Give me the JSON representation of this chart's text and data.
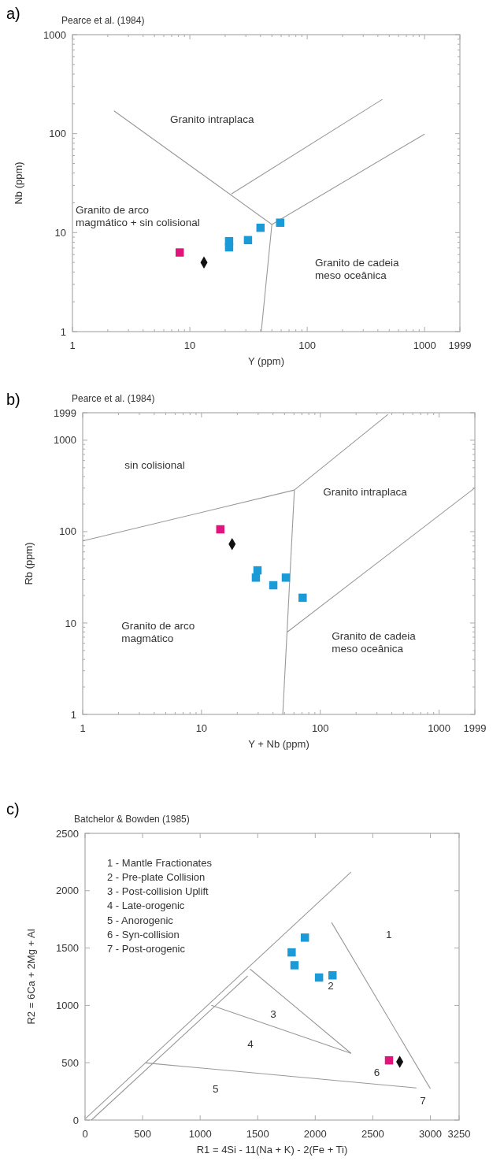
{
  "chart_data": [
    {
      "type": "scatter",
      "title": "a)",
      "subtitle": "Pearce et al. (1984)",
      "xlabel": "Y  (ppm)",
      "ylabel": "Nb  (ppm)",
      "log": "xy",
      "xlim": [
        1,
        1999
      ],
      "ylim": [
        1,
        1000
      ],
      "xticks": [
        1,
        {
          "value": 2,
          "label": null
        },
        {
          "value": 3,
          "label": null
        },
        {
          "value": 4,
          "label": null
        },
        {
          "value": 5,
          "label": null
        },
        {
          "value": 6,
          "label": null
        },
        {
          "value": 7,
          "label": null
        },
        {
          "value": 8,
          "label": null
        },
        {
          "value": 9,
          "label": null
        },
        10,
        {
          "value": 20,
          "label": null
        },
        {
          "value": 30,
          "label": null
        },
        {
          "value": 40,
          "label": null
        },
        {
          "value": 50,
          "label": null
        },
        {
          "value": 60,
          "label": null
        },
        {
          "value": 70,
          "label": null
        },
        {
          "value": 80,
          "label": null
        },
        {
          "value": 90,
          "label": null
        },
        100,
        {
          "value": 200,
          "label": null
        },
        {
          "value": 300,
          "label": null
        },
        {
          "value": 400,
          "label": null
        },
        {
          "value": 500,
          "label": null
        },
        {
          "value": 600,
          "label": null
        },
        {
          "value": 700,
          "label": null
        },
        {
          "value": 800,
          "label": null
        },
        {
          "value": 900,
          "label": null
        },
        1000,
        1999
      ],
      "yticks": [
        1,
        {
          "value": 2,
          "label": null
        },
        {
          "value": 3,
          "label": null
        },
        {
          "value": 4,
          "label": null
        },
        {
          "value": 5,
          "label": null
        },
        {
          "value": 6,
          "label": null
        },
        {
          "value": 7,
          "label": null
        },
        {
          "value": 8,
          "label": null
        },
        {
          "value": 9,
          "label": null
        },
        10,
        {
          "value": 20,
          "label": null
        },
        {
          "value": 30,
          "label": null
        },
        {
          "value": 40,
          "label": null
        },
        {
          "value": 50,
          "label": null
        },
        {
          "value": 60,
          "label": null
        },
        {
          "value": 70,
          "label": null
        },
        {
          "value": 80,
          "label": null
        },
        {
          "value": 90,
          "label": null
        },
        100,
        {
          "value": 200,
          "label": null
        },
        {
          "value": 300,
          "label": null
        },
        {
          "value": 400,
          "label": null
        },
        {
          "value": 500,
          "label": null
        },
        {
          "value": 600,
          "label": null
        },
        {
          "value": 700,
          "label": null
        },
        {
          "value": 800,
          "label": null
        },
        {
          "value": 900,
          "label": null
        },
        1000
      ],
      "series": [
        {
          "type": "line",
          "color": "#999999",
          "x": [
            2.26,
            50,
            40.6
          ],
          "values": [
            170,
            12.1,
            1
          ]
        },
        {
          "type": "line",
          "color": "#999999",
          "x": [
            22.6,
            437
          ],
          "values": [
            24.6,
            222
          ]
        },
        {
          "type": "line",
          "color": "#999999",
          "x": [
            50,
            1000
          ],
          "values": [
            12.1,
            99
          ]
        },
        {
          "type": "scatter",
          "marker": "square",
          "color": "#1a9ad6",
          "x": [
            21.6,
            21.6,
            31.3,
            40,
            58.8
          ],
          "values": [
            8.2,
            7.1,
            8.4,
            11.2,
            12.6
          ]
        },
        {
          "type": "scatter",
          "marker": "square",
          "color": "#e0147a",
          "x": [
            8.2
          ],
          "values": [
            6.3
          ]
        },
        {
          "type": "scatter",
          "marker": "diamond",
          "color": "#111111",
          "x": [
            13.2
          ],
          "values": [
            5.0
          ]
        }
      ],
      "annotations": [
        "Granito intraplaca",
        "Granito de arco\nmagmático + sin colisional",
        "Granito de cadeia\nmeso oceânica"
      ]
    },
    {
      "type": "scatter",
      "title": "b)",
      "subtitle": "Pearce et al. (1984)",
      "xlabel": "Y + Nb  (ppm)",
      "ylabel": "Rb  (ppm)",
      "log": "xy",
      "xlim": [
        1,
        1999
      ],
      "ylim": [
        1,
        1999
      ],
      "xticks": [
        1,
        {
          "value": 2,
          "label": null
        },
        {
          "value": 3,
          "label": null
        },
        {
          "value": 4,
          "label": null
        },
        {
          "value": 5,
          "label": null
        },
        {
          "value": 6,
          "label": null
        },
        {
          "value": 7,
          "label": null
        },
        {
          "value": 8,
          "label": null
        },
        {
          "value": 9,
          "label": null
        },
        10,
        {
          "value": 20,
          "label": null
        },
        {
          "value": 30,
          "label": null
        },
        {
          "value": 40,
          "label": null
        },
        {
          "value": 50,
          "label": null
        },
        {
          "value": 60,
          "label": null
        },
        {
          "value": 70,
          "label": null
        },
        {
          "value": 80,
          "label": null
        },
        {
          "value": 90,
          "label": null
        },
        100,
        {
          "value": 200,
          "label": null
        },
        {
          "value": 300,
          "label": null
        },
        {
          "value": 400,
          "label": null
        },
        {
          "value": 500,
          "label": null
        },
        {
          "value": 600,
          "label": null
        },
        {
          "value": 700,
          "label": null
        },
        {
          "value": 800,
          "label": null
        },
        {
          "value": 900,
          "label": null
        },
        1000,
        1999
      ],
      "yticks": [
        1,
        {
          "value": 2,
          "label": null
        },
        {
          "value": 3,
          "label": null
        },
        {
          "value": 4,
          "label": null
        },
        {
          "value": 5,
          "label": null
        },
        {
          "value": 6,
          "label": null
        },
        {
          "value": 7,
          "label": null
        },
        {
          "value": 8,
          "label": null
        },
        {
          "value": 9,
          "label": null
        },
        10,
        {
          "value": 20,
          "label": null
        },
        {
          "value": 30,
          "label": null
        },
        {
          "value": 40,
          "label": null
        },
        {
          "value": 50,
          "label": null
        },
        {
          "value": 60,
          "label": null
        },
        {
          "value": 70,
          "label": null
        },
        {
          "value": 80,
          "label": null
        },
        {
          "value": 90,
          "label": null
        },
        100,
        {
          "value": 200,
          "label": null
        },
        {
          "value": 300,
          "label": null
        },
        {
          "value": 400,
          "label": null
        },
        {
          "value": 500,
          "label": null
        },
        {
          "value": 600,
          "label": null
        },
        {
          "value": 700,
          "label": null
        },
        {
          "value": 800,
          "label": null
        },
        {
          "value": 900,
          "label": null
        },
        1000,
        1999
      ],
      "series": [
        {
          "type": "line",
          "color": "#999999",
          "x": [
            1,
            60.5,
            371
          ],
          "values": [
            79,
            285,
            1919
          ]
        },
        {
          "type": "line",
          "color": "#999999",
          "x": [
            60.5,
            48.3
          ],
          "values": [
            285,
            1
          ]
        },
        {
          "type": "line",
          "color": "#999999",
          "x": [
            52.9,
            1999
          ],
          "values": [
            8.0,
            301
          ]
        },
        {
          "type": "scatter",
          "marker": "square",
          "color": "#1a9ad6",
          "x": [
            29.6,
            28.7,
            40.2,
            51.3,
            71
          ],
          "values": [
            37.7,
            31.4,
            25.9,
            31.4,
            18.9
          ]
        },
        {
          "type": "scatter",
          "marker": "square",
          "color": "#e0147a",
          "x": [
            14.4
          ],
          "values": [
            106
          ]
        },
        {
          "type": "scatter",
          "marker": "diamond",
          "color": "#111111",
          "x": [
            18.1
          ],
          "values": [
            73
          ]
        }
      ],
      "annotations": [
        "sin colisional",
        "Granito intraplaca",
        "Granito de arco\nmagmático",
        "Granito de cadeia\nmeso oceânica"
      ]
    },
    {
      "type": "scatter",
      "title": "c)",
      "subtitle": "Batchelor & Bowden (1985)",
      "xlabel": "R1 = 4Si - 11(Na + K) - 2(Fe + Ti)",
      "ylabel": "R2 = 6Ca + 2Mg + Al",
      "xlim": [
        0,
        3250
      ],
      "ylim": [
        0,
        2500
      ],
      "xticks": [
        0,
        500,
        1000,
        1500,
        2000,
        2500,
        3000,
        3250
      ],
      "yticks": [
        0,
        500,
        1000,
        1500,
        2000,
        2500
      ],
      "series": [
        {
          "type": "line",
          "color": "#999999",
          "x": [
            5,
            2311
          ],
          "values": [
            14,
            2162
          ]
        },
        {
          "type": "line",
          "color": "#999999",
          "x": [
            55,
            1413
          ],
          "values": [
            0,
            1257
          ]
        },
        {
          "type": "line",
          "color": "#999999",
          "x": [
            1097,
            2311
          ],
          "values": [
            1001,
            582
          ]
        },
        {
          "type": "line",
          "color": "#999999",
          "x": [
            1434,
            2311
          ],
          "values": [
            1317,
            582
          ]
        },
        {
          "type": "line",
          "color": "#999999",
          "x": [
            524,
            2879
          ],
          "values": [
            499,
            280
          ]
        },
        {
          "type": "line",
          "color": "#999999",
          "x": [
            2142,
            3000
          ],
          "values": [
            1723,
            274
          ]
        },
        {
          "type": "scatter",
          "marker": "square",
          "color": "#1a9ad6",
          "x": [
            1910,
            1795,
            1820,
            2033,
            2150
          ],
          "values": [
            1591,
            1462,
            1350,
            1243,
            1262
          ]
        },
        {
          "type": "scatter",
          "marker": "square",
          "color": "#e0147a",
          "x": [
            2641
          ],
          "values": [
            521
          ]
        },
        {
          "type": "scatter",
          "marker": "diamond",
          "color": "#111111",
          "x": [
            2734
          ],
          "values": [
            508
          ]
        }
      ],
      "annotations": [
        "1 - Mantle Fractionates\n2 - Pre-plate Collision\n3 - Post-collision Uplift\n4 - Late-orogenic\n5 - Anorogenic\n6 - Syn-collision\n7 - Post-orogenic",
        "1",
        "2",
        "3",
        "4",
        "5",
        "6",
        "7"
      ]
    }
  ]
}
